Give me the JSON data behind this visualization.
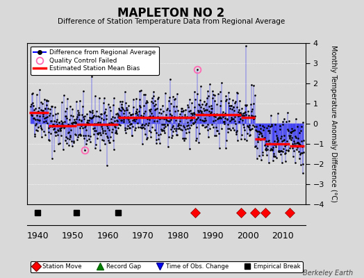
{
  "title": "MAPLETON NO 2",
  "subtitle": "Difference of Station Temperature Data from Regional Average",
  "ylabel": "Monthly Temperature Anomaly Difference (°C)",
  "xlabel_years": [
    1940,
    1950,
    1960,
    1970,
    1980,
    1990,
    2000,
    2010
  ],
  "xlim": [
    1937,
    2016.5
  ],
  "ylim": [
    -4,
    4
  ],
  "yticks": [
    -4,
    -3,
    -2,
    -1,
    0,
    1,
    2,
    3,
    4
  ],
  "background_color": "#d9d9d9",
  "plot_bg_color": "#d9d9d9",
  "line_color": "#0000ff",
  "dot_color": "#000000",
  "bias_color": "#ff0000",
  "qc_color": "#ff69b4",
  "watermark": "Berkeley Earth",
  "station_moves": [
    1985,
    1998,
    2002,
    2005,
    2012
  ],
  "empirical_breaks": [
    1940,
    1951,
    1963
  ],
  "qc_failed_years": [
    1953.5,
    1985.5
  ],
  "qc_failed_vals": [
    -1.3,
    2.7
  ],
  "bias_segments": [
    {
      "x": [
        1937.5,
        1943
      ],
      "y": [
        0.55,
        0.55
      ]
    },
    {
      "x": [
        1943,
        1951
      ],
      "y": [
        -0.1,
        -0.1
      ]
    },
    {
      "x": [
        1951,
        1963
      ],
      "y": [
        -0.05,
        -0.05
      ]
    },
    {
      "x": [
        1963,
        1985
      ],
      "y": [
        0.3,
        0.3
      ]
    },
    {
      "x": [
        1985,
        1998
      ],
      "y": [
        0.45,
        0.45
      ]
    },
    {
      "x": [
        1998,
        2002
      ],
      "y": [
        0.3,
        0.3
      ]
    },
    {
      "x": [
        2002,
        2005
      ],
      "y": [
        -0.75,
        -0.75
      ]
    },
    {
      "x": [
        2005,
        2012
      ],
      "y": [
        -1.0,
        -1.0
      ]
    },
    {
      "x": [
        2012,
        2016
      ],
      "y": [
        -1.1,
        -1.1
      ]
    }
  ],
  "tall_spike_x": [
    1999.5
  ],
  "tall_spike_y": [
    3.85
  ]
}
